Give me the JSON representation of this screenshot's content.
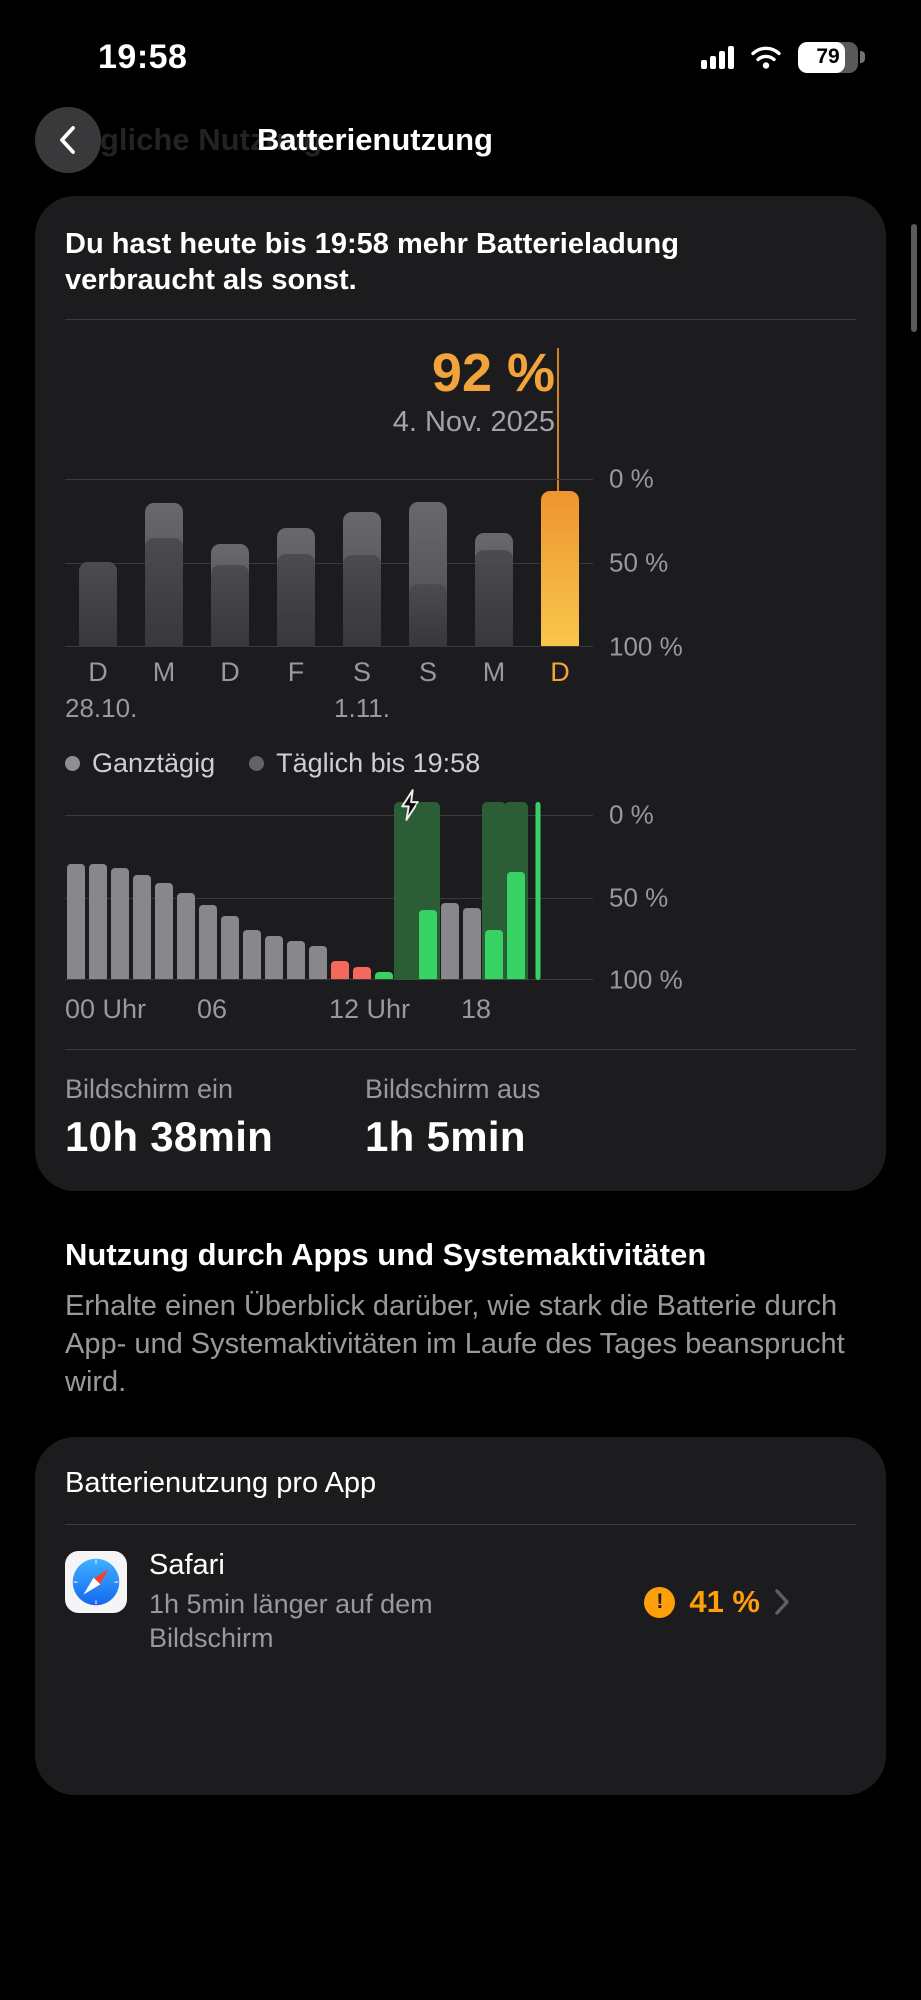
{
  "status_bar": {
    "time": "19:58",
    "battery_percent": "79"
  },
  "header": {
    "title": "Batterienutzung",
    "previous_title_fragment": "gliche Nutzung"
  },
  "battery_card": {
    "summary": "Du hast heute bis 19:58 mehr Batterieladung verbraucht als sonst.",
    "legend": {
      "all_day": "Ganztägig",
      "daily_until": "Täglich bis 19:58"
    },
    "screen_on_label": "Bildschirm ein",
    "screen_on_value": "10h 38min",
    "screen_off_label": "Bildschirm aus",
    "screen_off_value": "1h 5min"
  },
  "chart_data": [
    {
      "type": "bar",
      "title": "",
      "categories": [
        "D",
        "M",
        "D",
        "F",
        "S",
        "S",
        "M",
        "D"
      ],
      "category_dates": [
        "28.10.",
        "",
        "",
        "",
        "1.11.",
        "",
        "",
        ""
      ],
      "series": [
        {
          "name": "Ganztägig",
          "values": [
            50,
            85,
            61,
            70,
            80,
            86,
            67,
            92
          ]
        },
        {
          "name": "Täglich bis 19:58",
          "values": [
            50,
            64,
            48,
            55,
            54,
            37,
            57,
            92
          ]
        }
      ],
      "highlight_index": 7,
      "highlight_value": "92 %",
      "highlight_date": "4. Nov. 2025",
      "yticks": [
        "0 %",
        "50 %",
        "100 %"
      ],
      "ylim": [
        0,
        100
      ],
      "colors": {
        "all_day": "#5f5f64",
        "until_now": "#3e3e42",
        "highlight_top": "#ee9430",
        "highlight_bottom": "#f9c64b",
        "annotation": "#f2a33c"
      }
    },
    {
      "type": "bar",
      "title": "",
      "x_labels": [
        {
          "slot": 0,
          "label": "00 Uhr"
        },
        {
          "slot": 6,
          "label": "06"
        },
        {
          "slot": 12,
          "label": "12 Uhr"
        },
        {
          "slot": 18,
          "label": "18"
        }
      ],
      "yticks": [
        "0 %",
        "50 %",
        "100 %"
      ],
      "ylim": [
        0,
        100
      ],
      "bars": [
        {
          "v": 70,
          "c": "gray"
        },
        {
          "v": 70,
          "c": "gray"
        },
        {
          "v": 67,
          "c": "gray"
        },
        {
          "v": 63,
          "c": "gray"
        },
        {
          "v": 58,
          "c": "gray"
        },
        {
          "v": 52,
          "c": "gray"
        },
        {
          "v": 45,
          "c": "gray"
        },
        {
          "v": 38,
          "c": "gray"
        },
        {
          "v": 30,
          "c": "gray"
        },
        {
          "v": 26,
          "c": "gray"
        },
        {
          "v": 23,
          "c": "gray"
        },
        {
          "v": 20,
          "c": "gray"
        },
        {
          "v": 11,
          "c": "red"
        },
        {
          "v": 7,
          "c": "red"
        },
        {
          "v": 4,
          "c": "green"
        },
        {
          "v": 0,
          "c": "green",
          "band": true,
          "bolt": true
        },
        {
          "v": 42,
          "c": "green",
          "band": true
        },
        {
          "v": 46,
          "c": "gray"
        },
        {
          "v": 43,
          "c": "gray"
        },
        {
          "v": 30,
          "c": "green",
          "band": true
        },
        {
          "v": 65,
          "c": "green",
          "band": true
        },
        {
          "v": 100,
          "c": "spark"
        },
        {
          "v": 0,
          "c": "none"
        },
        {
          "v": 0,
          "c": "none"
        }
      ],
      "colors": {
        "gray": "#87878c",
        "red": "#f4695c",
        "green": "#36d364",
        "charging_band": "#2b5d37"
      }
    }
  ],
  "apps_section": {
    "title": "Nutzung durch Apps und Systemaktivitäten",
    "description": "Erhalte einen Überblick darüber, wie stark die Batterie durch App- und Systemaktivitäten im Laufe des Tages beansprucht wird.",
    "card_title": "Batterienutzung pro App",
    "apps": [
      {
        "name": "Safari",
        "subtitle": "1h 5min länger auf dem Bildschirm",
        "percent": "41 %",
        "warning_icon": "!"
      }
    ]
  }
}
